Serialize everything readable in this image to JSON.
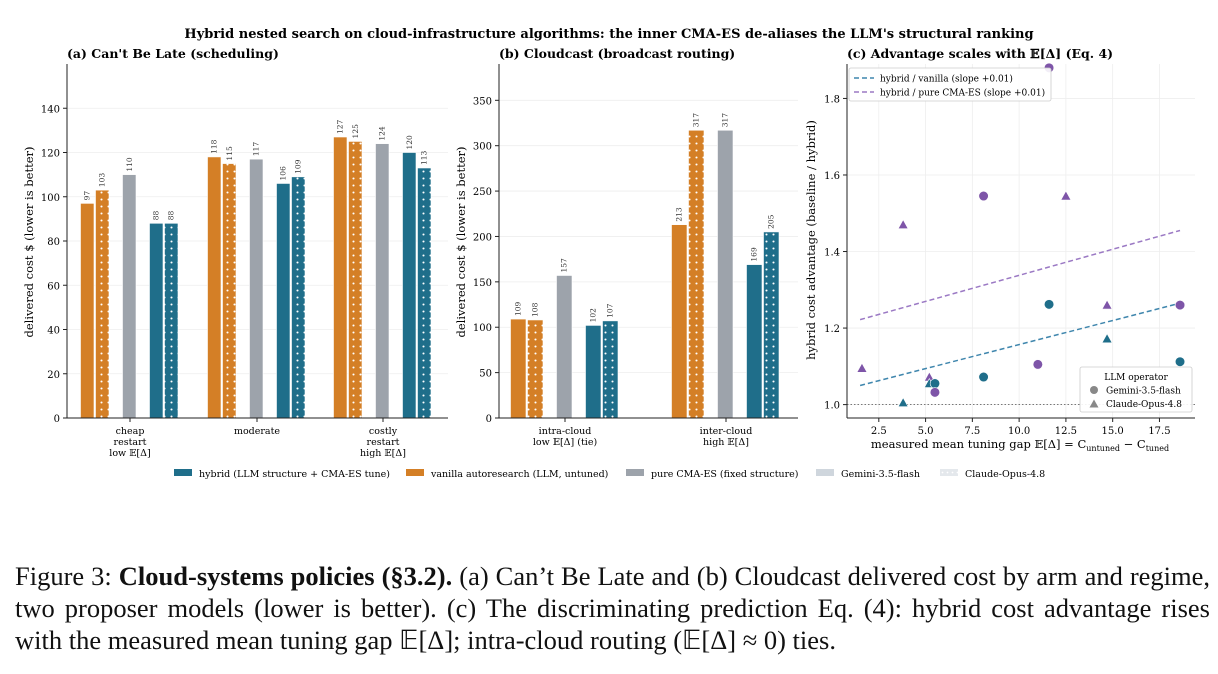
{
  "figure": {
    "suptitle": "Hybrid nested search on cloud-infrastructure algorithms: the inner CMA-ES de-aliases the LLM's structural ranking"
  },
  "colors": {
    "hybrid": "#1f6e8a",
    "vanilla": "#d47f26",
    "pure": "#9da3ab",
    "gemini_legend": "#cfd6dd",
    "claude_legend": "#e4e8ec",
    "trend_vanilla": "#3f86ad",
    "trend_pure": "#9b79c4",
    "pts_vanilla": "#1f6e8a",
    "pts_pure": "#7e55a8"
  },
  "legend": {
    "arms": [
      {
        "key": "hybrid",
        "label": "hybrid (LLM structure + CMA-ES tune)"
      },
      {
        "key": "vanilla",
        "label": "vanilla autoresearch (LLM, untuned)"
      },
      {
        "key": "pure",
        "label": "pure CMA-ES (fixed structure)"
      }
    ],
    "models": [
      {
        "key": "gemini",
        "label": "Gemini-3.5-flash"
      },
      {
        "key": "claude",
        "label": "Claude-Opus-4.8"
      }
    ]
  },
  "chart_data": [
    {
      "type": "bar",
      "title": "(a) Can't Be Late (scheduling)",
      "ylabel": "delivered cost $  (lower is better)",
      "ylim": [
        0,
        160
      ],
      "yticks": [
        0,
        20,
        40,
        60,
        80,
        100,
        120,
        140
      ],
      "categories": [
        [
          "cheap",
          "restart",
          "low 𝔼[Δ]"
        ],
        [
          "moderate"
        ],
        [
          "costly",
          "restart",
          "high 𝔼[Δ]"
        ]
      ],
      "series": [
        {
          "arm": "vanilla",
          "model": "Gemini-3.5-flash",
          "values": [
            97,
            118,
            127
          ]
        },
        {
          "arm": "vanilla",
          "model": "Claude-Opus-4.8",
          "values": [
            103,
            115,
            125
          ]
        },
        {
          "arm": "pure",
          "model": "",
          "values": [
            110,
            117,
            124
          ]
        },
        {
          "arm": "hybrid",
          "model": "Gemini-3.5-flash",
          "values": [
            88,
            106,
            120
          ]
        },
        {
          "arm": "hybrid",
          "model": "Claude-Opus-4.8",
          "values": [
            88,
            109,
            113
          ]
        }
      ]
    },
    {
      "type": "bar",
      "title": "(b) Cloudcast (broadcast routing)",
      "ylabel": "delivered cost $  (lower is better)",
      "ylim": [
        0,
        390
      ],
      "yticks": [
        0,
        50,
        100,
        150,
        200,
        250,
        300,
        350
      ],
      "categories": [
        [
          "intra-cloud",
          "low 𝔼[Δ] (tie)"
        ],
        [
          "inter-cloud",
          "high 𝔼[Δ]"
        ]
      ],
      "series": [
        {
          "arm": "vanilla",
          "model": "Gemini-3.5-flash",
          "values": [
            109,
            213
          ]
        },
        {
          "arm": "vanilla",
          "model": "Claude-Opus-4.8",
          "values": [
            108,
            317
          ]
        },
        {
          "arm": "pure",
          "model": "",
          "values": [
            157,
            317
          ]
        },
        {
          "arm": "hybrid",
          "model": "Gemini-3.5-flash",
          "values": [
            102,
            169
          ]
        },
        {
          "arm": "hybrid",
          "model": "Claude-Opus-4.8",
          "values": [
            107,
            205
          ]
        }
      ]
    },
    {
      "type": "scatter",
      "title": "(c) Advantage scales with 𝔼[Δ] (Eq. 4)",
      "xlabel": "measured mean tuning gap  𝔼[Δ] = C",
      "xlabel_sub1": "untuned",
      "xlabel_mid": " − C",
      "xlabel_sub2": "tuned",
      "ylabel": "hybrid cost advantage  (baseline / hybrid)",
      "xlim": [
        0.8,
        19.4
      ],
      "ylim": [
        0.965,
        1.89
      ],
      "xticks": [
        "2.5",
        "5.0",
        "7.5",
        "10.0",
        "12.5",
        "15.0",
        "17.5"
      ],
      "yticks": [
        "1.0",
        "1.2",
        "1.4",
        "1.6",
        "1.8"
      ],
      "reference_y": 1.0,
      "legend_title": "LLM operator",
      "trend_lines": [
        {
          "key": "vanilla",
          "label": "hybrid / vanilla  (slope +0.01)",
          "x": [
            1.5,
            18.6
          ],
          "y": [
            1.05,
            1.265
          ]
        },
        {
          "key": "pure",
          "label": "hybrid / pure CMA-ES  (slope +0.01)",
          "x": [
            1.5,
            18.6
          ],
          "y": [
            1.222,
            1.455
          ]
        }
      ],
      "points": [
        {
          "x": 1.6,
          "y": 1.095,
          "model": "Claude-Opus-4.8",
          "vs": "pure"
        },
        {
          "x": 3.8,
          "y": 1.47,
          "model": "Claude-Opus-4.8",
          "vs": "pure"
        },
        {
          "x": 3.8,
          "y": 1.005,
          "model": "Claude-Opus-4.8",
          "vs": "vanilla"
        },
        {
          "x": 5.2,
          "y": 1.072,
          "model": "Claude-Opus-4.8",
          "vs": "pure"
        },
        {
          "x": 5.2,
          "y": 1.055,
          "model": "Claude-Opus-4.8",
          "vs": "vanilla"
        },
        {
          "x": 5.5,
          "y": 1.055,
          "model": "Gemini-3.5-flash",
          "vs": "vanilla"
        },
        {
          "x": 5.5,
          "y": 1.032,
          "model": "Gemini-3.5-flash",
          "vs": "pure"
        },
        {
          "x": 8.1,
          "y": 1.545,
          "model": "Gemini-3.5-flash",
          "vs": "pure"
        },
        {
          "x": 8.1,
          "y": 1.072,
          "model": "Gemini-3.5-flash",
          "vs": "vanilla"
        },
        {
          "x": 11.0,
          "y": 1.105,
          "model": "Gemini-3.5-flash",
          "vs": "pure"
        },
        {
          "x": 11.6,
          "y": 1.262,
          "model": "Gemini-3.5-flash",
          "vs": "vanilla"
        },
        {
          "x": 11.6,
          "y": 1.88,
          "model": "Gemini-3.5-flash",
          "vs": "pure"
        },
        {
          "x": 12.5,
          "y": 1.545,
          "model": "Claude-Opus-4.8",
          "vs": "pure"
        },
        {
          "x": 14.7,
          "y": 1.26,
          "model": "Claude-Opus-4.8",
          "vs": "pure"
        },
        {
          "x": 14.7,
          "y": 1.172,
          "model": "Claude-Opus-4.8",
          "vs": "vanilla"
        },
        {
          "x": 18.6,
          "y": 1.26,
          "model": "Gemini-3.5-flash",
          "vs": "pure"
        },
        {
          "x": 18.6,
          "y": 1.112,
          "model": "Gemini-3.5-flash",
          "vs": "vanilla"
        }
      ]
    }
  ],
  "caption": {
    "label": "Figure 3:",
    "bold": "Cloud-systems policies (§3.2).",
    "text": "(a) Can’t Be Late and (b) Cloudcast delivered cost by arm and regime, two proposer models (lower is better). (c) The discriminating prediction Eq. (4): hybrid cost advantage rises with the measured mean tuning gap 𝔼[Δ]; intra-cloud routing (𝔼[Δ] ≈ 0) ties."
  }
}
